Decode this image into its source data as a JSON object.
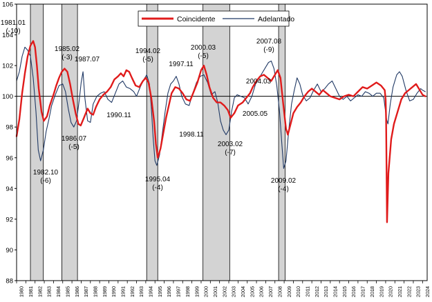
{
  "chart_data": {
    "type": "line",
    "title": "",
    "xlabel": "",
    "ylabel": "",
    "ylim": [
      88,
      106
    ],
    "yticks": [
      88,
      90,
      92,
      94,
      96,
      98,
      100,
      102,
      104,
      106
    ],
    "xlim": [
      1980,
      2024.5
    ],
    "xtick_labels": [
      "1980",
      "1981",
      "1982",
      "1983",
      "1984",
      "1985",
      "1986",
      "1987",
      "1988",
      "1989",
      "1990",
      "1991",
      "1992",
      "1993",
      "1994",
      "1995",
      "1996",
      "1997",
      "1998",
      "1999",
      "2000",
      "2001",
      "2002",
      "2003",
      "2004",
      "2005",
      "2006",
      "2007",
      "2008",
      "2009",
      "2010",
      "2011",
      "2012",
      "2013",
      "2014",
      "2015",
      "2016",
      "2017",
      "2018",
      "2019",
      "2020",
      "2021",
      "2022",
      "2023",
      "2024"
    ],
    "reference_line": 100,
    "legend": {
      "position": "top-center",
      "entries": [
        "Coincidente",
        "Adelantado"
      ]
    },
    "colors": {
      "coincidente": "#e01b1b",
      "adelantado": "#1f3864",
      "recession": "#d3d3d3",
      "axis": "#000000"
    },
    "recessions": [
      {
        "start": 1981.5,
        "end": 1982.9
      },
      {
        "start": 1984.9,
        "end": 1986.6
      },
      {
        "start": 1994.1,
        "end": 1995.3
      },
      {
        "start": 2000.2,
        "end": 2003.1
      },
      {
        "start": 2008.4,
        "end": 2009.1
      }
    ],
    "series": [
      {
        "name": "Coincidente",
        "points": [
          [
            1980.0,
            97.4
          ],
          [
            1980.3,
            98.5
          ],
          [
            1980.6,
            100.2
          ],
          [
            1980.9,
            101.5
          ],
          [
            1981.2,
            102.6
          ],
          [
            1981.5,
            103.3
          ],
          [
            1981.8,
            103.6
          ],
          [
            1982.0,
            103.2
          ],
          [
            1982.2,
            102.0
          ],
          [
            1982.4,
            100.5
          ],
          [
            1982.7,
            99.0
          ],
          [
            1982.95,
            98.4
          ],
          [
            1983.3,
            98.7
          ],
          [
            1983.6,
            99.4
          ],
          [
            1984.0,
            100.1
          ],
          [
            1984.3,
            100.7
          ],
          [
            1984.6,
            101.2
          ],
          [
            1984.9,
            101.6
          ],
          [
            1985.2,
            101.8
          ],
          [
            1985.5,
            101.6
          ],
          [
            1985.8,
            100.8
          ],
          [
            1986.1,
            99.8
          ],
          [
            1986.4,
            98.9
          ],
          [
            1986.7,
            98.2
          ],
          [
            1986.95,
            98.1
          ],
          [
            1987.3,
            98.6
          ],
          [
            1987.7,
            99.2
          ],
          [
            1988.0,
            98.9
          ],
          [
            1988.3,
            98.8
          ],
          [
            1988.6,
            99.3
          ],
          [
            1989.0,
            99.8
          ],
          [
            1989.4,
            100.1
          ],
          [
            1989.8,
            100.3
          ],
          [
            1990.2,
            100.6
          ],
          [
            1990.6,
            101.1
          ],
          [
            1991.0,
            101.3
          ],
          [
            1991.3,
            101.5
          ],
          [
            1991.6,
            101.3
          ],
          [
            1991.9,
            101.7
          ],
          [
            1992.2,
            101.6
          ],
          [
            1992.5,
            101.2
          ],
          [
            1992.9,
            100.7
          ],
          [
            1993.3,
            100.6
          ],
          [
            1993.7,
            101.0
          ],
          [
            1994.0,
            101.2
          ],
          [
            1994.3,
            100.9
          ],
          [
            1994.6,
            99.9
          ],
          [
            1994.9,
            98.4
          ],
          [
            1995.1,
            96.9
          ],
          [
            1995.3,
            96.0
          ],
          [
            1995.6,
            96.6
          ],
          [
            1995.9,
            97.6
          ],
          [
            1996.2,
            98.6
          ],
          [
            1996.5,
            99.4
          ],
          [
            1996.8,
            100.2
          ],
          [
            1997.2,
            100.6
          ],
          [
            1997.6,
            100.5
          ],
          [
            1998.0,
            100.2
          ],
          [
            1998.4,
            99.8
          ],
          [
            1998.8,
            99.7
          ],
          [
            1999.2,
            100.3
          ],
          [
            1999.6,
            100.9
          ],
          [
            2000.0,
            101.7
          ],
          [
            2000.3,
            102.0
          ],
          [
            2000.6,
            101.4
          ],
          [
            2000.9,
            100.6
          ],
          [
            2001.3,
            99.9
          ],
          [
            2001.7,
            99.6
          ],
          [
            2002.1,
            99.6
          ],
          [
            2002.5,
            99.4
          ],
          [
            2002.9,
            99.1
          ],
          [
            2003.2,
            98.6
          ],
          [
            2003.6,
            98.9
          ],
          [
            2004.0,
            99.4
          ],
          [
            2004.5,
            99.6
          ],
          [
            2004.9,
            99.9
          ],
          [
            2005.3,
            100.2
          ],
          [
            2005.6,
            100.6
          ],
          [
            2006.0,
            101.0
          ],
          [
            2006.4,
            101.3
          ],
          [
            2006.8,
            101.4
          ],
          [
            2007.2,
            101.2
          ],
          [
            2007.6,
            101.0
          ],
          [
            2008.0,
            101.4
          ],
          [
            2008.3,
            101.7
          ],
          [
            2008.6,
            101.2
          ],
          [
            2008.9,
            99.5
          ],
          [
            2009.2,
            97.9
          ],
          [
            2009.4,
            97.5
          ],
          [
            2009.7,
            98.2
          ],
          [
            2010.0,
            98.9
          ],
          [
            2010.4,
            99.3
          ],
          [
            2010.8,
            99.6
          ],
          [
            2011.2,
            100.0
          ],
          [
            2011.6,
            100.3
          ],
          [
            2012.0,
            100.5
          ],
          [
            2012.4,
            100.3
          ],
          [
            2012.8,
            100.1
          ],
          [
            2013.2,
            100.4
          ],
          [
            2013.6,
            100.2
          ],
          [
            2014.0,
            100.0
          ],
          [
            2014.5,
            99.9
          ],
          [
            2015.0,
            99.8
          ],
          [
            2015.5,
            100.0
          ],
          [
            2016.0,
            100.1
          ],
          [
            2016.5,
            100.0
          ],
          [
            2017.0,
            100.3
          ],
          [
            2017.5,
            100.6
          ],
          [
            2018.0,
            100.5
          ],
          [
            2018.5,
            100.7
          ],
          [
            2019.0,
            100.9
          ],
          [
            2019.5,
            100.7
          ],
          [
            2019.9,
            100.4
          ],
          [
            2020.0,
            99.8
          ],
          [
            2020.05,
            98.5
          ],
          [
            2020.15,
            91.8
          ],
          [
            2020.3,
            95.0
          ],
          [
            2020.6,
            97.2
          ],
          [
            2020.9,
            98.2
          ],
          [
            2021.3,
            99.0
          ],
          [
            2021.7,
            99.8
          ],
          [
            2022.1,
            100.2
          ],
          [
            2022.5,
            100.4
          ],
          [
            2022.9,
            100.6
          ],
          [
            2023.3,
            100.8
          ],
          [
            2023.7,
            100.4
          ],
          [
            2024.0,
            100.1
          ],
          [
            2024.3,
            100.0
          ]
        ]
      },
      {
        "name": "Adelantado",
        "points": [
          [
            1980.0,
            101.0
          ],
          [
            1980.3,
            101.6
          ],
          [
            1980.6,
            102.6
          ],
          [
            1980.9,
            103.2
          ],
          [
            1981.2,
            103.0
          ],
          [
            1981.5,
            102.6
          ],
          [
            1981.8,
            101.2
          ],
          [
            1982.1,
            99.0
          ],
          [
            1982.35,
            96.5
          ],
          [
            1982.6,
            95.8
          ],
          [
            1982.9,
            96.5
          ],
          [
            1983.2,
            97.7
          ],
          [
            1983.5,
            98.5
          ],
          [
            1983.8,
            99.4
          ],
          [
            1984.2,
            100.1
          ],
          [
            1984.6,
            100.7
          ],
          [
            1985.0,
            100.8
          ],
          [
            1985.3,
            100.3
          ],
          [
            1985.6,
            99.2
          ],
          [
            1985.9,
            98.3
          ],
          [
            1986.2,
            98.0
          ],
          [
            1986.5,
            98.4
          ],
          [
            1986.8,
            99.8
          ],
          [
            1987.0,
            100.9
          ],
          [
            1987.2,
            101.6
          ],
          [
            1987.4,
            99.9
          ],
          [
            1987.7,
            98.4
          ],
          [
            1988.0,
            98.3
          ],
          [
            1988.3,
            99.5
          ],
          [
            1988.7,
            100.0
          ],
          [
            1989.1,
            100.2
          ],
          [
            1989.5,
            100.3
          ],
          [
            1989.9,
            99.8
          ],
          [
            1990.3,
            99.6
          ],
          [
            1990.7,
            100.2
          ],
          [
            1991.1,
            100.8
          ],
          [
            1991.5,
            101.0
          ],
          [
            1991.9,
            100.6
          ],
          [
            1992.3,
            100.5
          ],
          [
            1992.7,
            100.3
          ],
          [
            1993.0,
            100.0
          ],
          [
            1993.4,
            100.6
          ],
          [
            1993.8,
            101.1
          ],
          [
            1994.1,
            101.4
          ],
          [
            1994.4,
            100.8
          ],
          [
            1994.6,
            99.3
          ],
          [
            1994.8,
            97.3
          ],
          [
            1995.0,
            95.8
          ],
          [
            1995.2,
            95.5
          ],
          [
            1995.5,
            96.2
          ],
          [
            1995.8,
            97.6
          ],
          [
            1996.1,
            99.0
          ],
          [
            1996.4,
            100.2
          ],
          [
            1996.7,
            100.8
          ],
          [
            1997.0,
            101.0
          ],
          [
            1997.3,
            101.3
          ],
          [
            1997.6,
            100.8
          ],
          [
            1997.9,
            100.0
          ],
          [
            1998.3,
            99.5
          ],
          [
            1998.7,
            99.4
          ],
          [
            1999.1,
            100.2
          ],
          [
            1999.5,
            100.9
          ],
          [
            1999.9,
            101.3
          ],
          [
            2000.3,
            101.4
          ],
          [
            2000.7,
            100.9
          ],
          [
            2001.1,
            100.1
          ],
          [
            2001.5,
            100.3
          ],
          [
            2001.8,
            99.6
          ],
          [
            2002.1,
            98.4
          ],
          [
            2002.4,
            97.8
          ],
          [
            2002.7,
            97.5
          ],
          [
            2003.0,
            97.8
          ],
          [
            2003.3,
            99.0
          ],
          [
            2003.6,
            99.9
          ],
          [
            2003.9,
            100.1
          ],
          [
            2004.3,
            100.0
          ],
          [
            2004.7,
            99.9
          ],
          [
            2005.1,
            99.5
          ],
          [
            2005.5,
            100.0
          ],
          [
            2005.9,
            100.8
          ],
          [
            2006.3,
            101.2
          ],
          [
            2006.7,
            101.6
          ],
          [
            2007.0,
            101.9
          ],
          [
            2007.3,
            102.2
          ],
          [
            2007.6,
            102.3
          ],
          [
            2007.9,
            101.8
          ],
          [
            2008.2,
            100.7
          ],
          [
            2008.5,
            99.0
          ],
          [
            2008.75,
            96.9
          ],
          [
            2008.95,
            95.3
          ],
          [
            2009.2,
            95.8
          ],
          [
            2009.5,
            97.8
          ],
          [
            2009.8,
            99.5
          ],
          [
            2010.1,
            100.4
          ],
          [
            2010.4,
            101.2
          ],
          [
            2010.7,
            100.8
          ],
          [
            2011.0,
            100.1
          ],
          [
            2011.4,
            99.7
          ],
          [
            2011.8,
            99.9
          ],
          [
            2012.2,
            100.4
          ],
          [
            2012.6,
            100.8
          ],
          [
            2013.0,
            100.3
          ],
          [
            2013.4,
            100.5
          ],
          [
            2013.8,
            100.8
          ],
          [
            2014.2,
            101.0
          ],
          [
            2014.6,
            100.5
          ],
          [
            2015.0,
            100.0
          ],
          [
            2015.4,
            99.8
          ],
          [
            2015.8,
            100.0
          ],
          [
            2016.2,
            99.7
          ],
          [
            2016.6,
            99.9
          ],
          [
            2017.0,
            100.1
          ],
          [
            2017.4,
            100.0
          ],
          [
            2017.8,
            100.3
          ],
          [
            2018.2,
            100.2
          ],
          [
            2018.6,
            100.0
          ],
          [
            2019.0,
            100.2
          ],
          [
            2019.4,
            100.2
          ],
          [
            2019.8,
            99.9
          ],
          [
            2020.1,
            98.5
          ],
          [
            2020.25,
            98.2
          ],
          [
            2020.5,
            99.5
          ],
          [
            2020.8,
            100.6
          ],
          [
            2021.2,
            101.4
          ],
          [
            2021.5,
            101.6
          ],
          [
            2021.8,
            101.3
          ],
          [
            2022.2,
            100.4
          ],
          [
            2022.6,
            99.7
          ],
          [
            2023.0,
            99.8
          ],
          [
            2023.4,
            100.2
          ],
          [
            2023.8,
            100.5
          ],
          [
            2024.0,
            100.4
          ],
          [
            2024.3,
            100.3
          ]
        ]
      }
    ],
    "annotations": [
      {
        "date": "1981.01",
        "phase": "(-10)"
      },
      {
        "date": "1982.10",
        "phase": "(-6)"
      },
      {
        "date": "1985.02",
        "phase": "(-3)"
      },
      {
        "date": "1986.07",
        "phase": "(-5)"
      },
      {
        "date": "1987.07",
        "phase": ""
      },
      {
        "date": "1990.11",
        "phase": ""
      },
      {
        "date": "1994.02",
        "phase": "(-5)"
      },
      {
        "date": "1995.04",
        "phase": "(-4)"
      },
      {
        "date": "1997.11",
        "phase": ""
      },
      {
        "date": "1998.11",
        "phase": ""
      },
      {
        "date": "2000.03",
        "phase": "(-5)"
      },
      {
        "date": "2003.02",
        "phase": "(-7)"
      },
      {
        "date": "2004.03",
        "phase": ""
      },
      {
        "date": "2005.05",
        "phase": ""
      },
      {
        "date": "2007.08",
        "phase": "(-9)"
      },
      {
        "date": "2009.02",
        "phase": "(-4)"
      }
    ]
  }
}
